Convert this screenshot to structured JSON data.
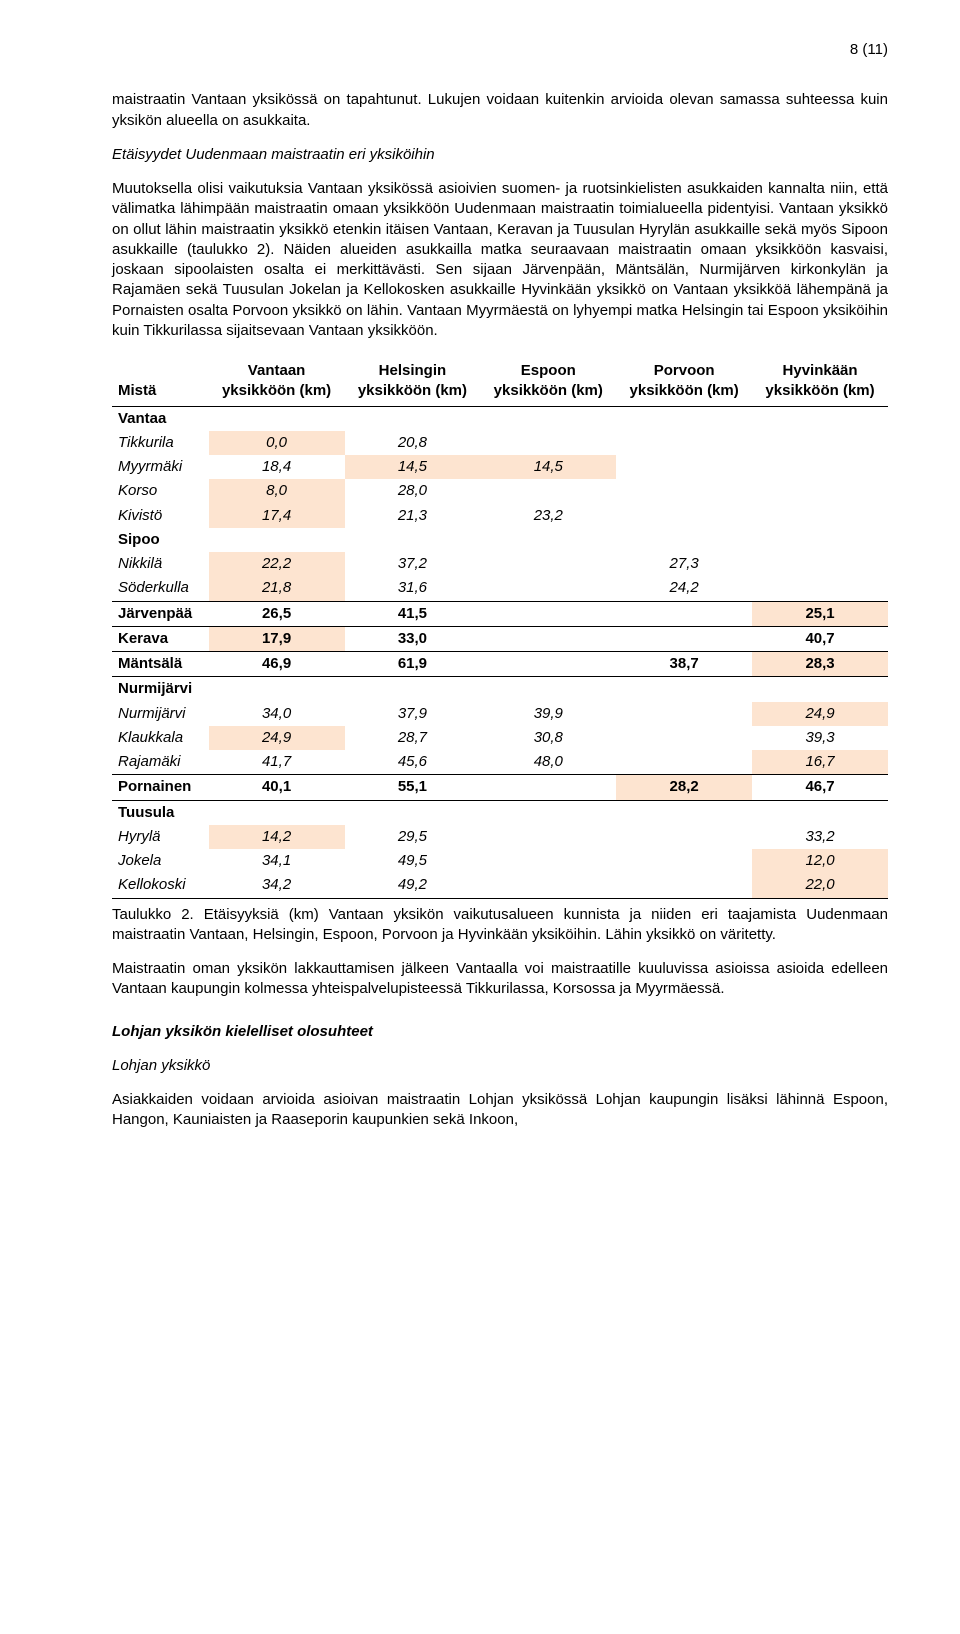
{
  "page_number": "8 (11)",
  "para1": "maistraatin Vantaan yksikössä on tapahtunut. Lukujen voidaan kuitenkin arvioida olevan samassa suhteessa kuin yksikön alueella on asukkaita.",
  "para2_heading": "Etäisyydet Uudenmaan maistraatin eri yksiköihin",
  "para3": "Muutoksella olisi vaikutuksia Vantaan yksikössä asioivien suomen- ja ruotsinkielisten asukkaiden kannalta niin, että välimatka lähimpään maistraatin omaan yksikköön Uudenmaan maistraatin toimialueella pidentyisi. Vantaan yksikkö on ollut lähin maistraatin yksikkö etenkin itäisen Vantaan, Keravan ja Tuusulan Hyrylän asukkaille sekä myös Sipoon asukkaille (taulukko 2). Näiden alueiden asukkailla matka seuraavaan maistraatin omaan yksikköön kasvaisi, joskaan sipoolaisten osalta ei merkittävästi. Sen sijaan Järvenpään, Mäntsälän, Nurmijärven kirkonkylän ja Rajamäen sekä Tuusulan Jokelan ja Kellokosken asukkaille Hyvinkään yksikkö on Vantaan yksikköä lähempänä ja Pornaisten osalta Porvoon yksikkö on lähin. Vantaan Myyrmäestä on lyhyempi matka Helsingin tai Espoon yksiköihin kuin Tikkurilassa sijaitsevaan Vantaan yksikköön.",
  "table": {
    "highlight_color": "#fde4d0",
    "headers": {
      "c0": "Mistä",
      "c1_top": "Vantaan",
      "c1_bot": "yksikköön (km)",
      "c2_top": "Helsingin",
      "c2_bot": "yksikköön (km)",
      "c3_top": "Espoon",
      "c3_bot": "yksikköön (km)",
      "c4_top": "Porvoon",
      "c4_bot": "yksikköön (km)",
      "c5_top": "Hyvinkään",
      "c5_bot": "yksikköön (km)"
    },
    "sections": {
      "vantaa": "Vantaa",
      "sipoo": "Sipoo",
      "nurmijarvi": "Nurmijärvi",
      "tuusula": "Tuusula"
    },
    "rows": {
      "tikkurila": {
        "lbl": "Tikkurila",
        "v": "0,0",
        "h": "20,8",
        "e": "",
        "p": "",
        "hy": "",
        "hl": [
          "v"
        ]
      },
      "myyrmaki": {
        "lbl": "Myyrmäki",
        "v": "18,4",
        "h": "14,5",
        "e": "14,5",
        "p": "",
        "hy": "",
        "hl": [
          "h",
          "e"
        ]
      },
      "korso": {
        "lbl": "Korso",
        "v": "8,0",
        "h": "28,0",
        "e": "",
        "p": "",
        "hy": "",
        "hl": [
          "v"
        ]
      },
      "kivisto": {
        "lbl": "Kivistö",
        "v": "17,4",
        "h": "21,3",
        "e": "23,2",
        "p": "",
        "hy": "",
        "hl": [
          "v"
        ]
      },
      "nikkila": {
        "lbl": "Nikkilä",
        "v": "22,2",
        "h": "37,2",
        "e": "",
        "p": "27,3",
        "hy": "",
        "hl": [
          "v"
        ]
      },
      "soderkulla": {
        "lbl": "Söderkulla",
        "v": "21,8",
        "h": "31,6",
        "e": "",
        "p": "24,2",
        "hy": "",
        "hl": [
          "v"
        ]
      },
      "jarvenpaa": {
        "lbl": "Järvenpää",
        "v": "26,5",
        "h": "41,5",
        "e": "",
        "p": "",
        "hy": "25,1",
        "hl": [
          "hy"
        ]
      },
      "kerava": {
        "lbl": "Kerava",
        "v": "17,9",
        "h": "33,0",
        "e": "",
        "p": "",
        "hy": "40,7",
        "hl": [
          "v"
        ]
      },
      "mantsala": {
        "lbl": "Mäntsälä",
        "v": "46,9",
        "h": "61,9",
        "e": "",
        "p": "38,7",
        "hy": "28,3",
        "hl": [
          "hy"
        ]
      },
      "nurmijarvi": {
        "lbl": "Nurmijärvi",
        "v": "34,0",
        "h": "37,9",
        "e": "39,9",
        "p": "",
        "hy": "24,9",
        "hl": [
          "hy"
        ]
      },
      "klaukkala": {
        "lbl": "Klaukkala",
        "v": "24,9",
        "h": "28,7",
        "e": "30,8",
        "p": "",
        "hy": "39,3",
        "hl": [
          "v"
        ]
      },
      "rajamaki": {
        "lbl": "Rajamäki",
        "v": "41,7",
        "h": "45,6",
        "e": "48,0",
        "p": "",
        "hy": "16,7",
        "hl": [
          "hy"
        ]
      },
      "pornainen": {
        "lbl": "Pornainen",
        "v": "40,1",
        "h": "55,1",
        "e": "",
        "p": "28,2",
        "hy": "46,7",
        "hl": [
          "p"
        ]
      },
      "hyryla": {
        "lbl": "Hyrylä",
        "v": "14,2",
        "h": "29,5",
        "e": "",
        "p": "",
        "hy": "33,2",
        "hl": [
          "v"
        ]
      },
      "jokela": {
        "lbl": "Jokela",
        "v": "34,1",
        "h": "49,5",
        "e": "",
        "p": "",
        "hy": "12,0",
        "hl": [
          "hy"
        ]
      },
      "kellokoski": {
        "lbl": "Kellokoski",
        "v": "34,2",
        "h": "49,2",
        "e": "",
        "p": "",
        "hy": "22,0",
        "hl": [
          "hy"
        ]
      }
    }
  },
  "caption": "Taulukko 2. Etäisyyksiä (km) Vantaan yksikön vaikutusalueen kunnista ja niiden eri taajamista Uudenmaan maistraatin Vantaan, Helsingin, Espoon, Porvoon ja Hyvinkään yksiköihin. Lähin yksikkö on väritetty.",
  "para4": "Maistraatin oman yksikön lakkauttamisen jälkeen Vantaalla voi maistraatille kuuluvissa asioissa asioida edelleen Vantaan kaupungin kolmessa yhteispalvelupisteessä Tikkurilassa, Korsossa ja Myyrmäessä.",
  "section_head": "Lohjan yksikön kielelliset olosuhteet",
  "sub_head": "Lohjan yksikkö",
  "para5": "Asiakkaiden voidaan arvioida asioivan maistraatin Lohjan yksikössä Lohjan kaupungin lisäksi lähinnä Espoon, Hangon, Kauniaisten ja Raaseporin kaupunkien sekä Inkoon,"
}
